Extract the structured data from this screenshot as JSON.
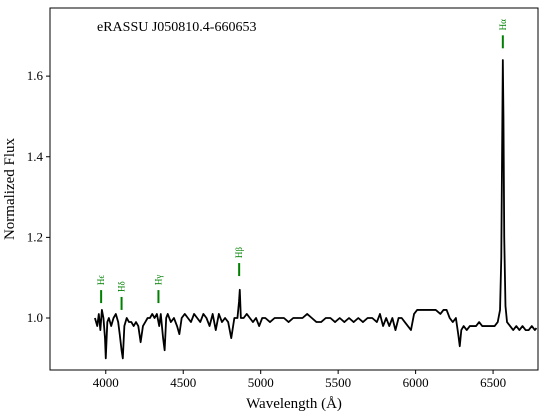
{
  "chart_data": {
    "type": "line",
    "title": "eRASSU J050810.4-660653",
    "x_label": "Wavelength (Å)",
    "y_label": "Normalized Flux",
    "xlim": [
      3640,
      6790
    ],
    "ylim": [
      0.871,
      1.769
    ],
    "xticks": [
      4000,
      4500,
      5000,
      5500,
      6000,
      6500
    ],
    "yticks": [
      {
        "value": 1,
        "label": "1.0"
      },
      1.2,
      1.4,
      1.6
    ],
    "color": "#000000",
    "line_color": "#008000",
    "lines": [
      {
        "label": "Hϵ",
        "x": 3970,
        "y": 1.037
      },
      {
        "label": "Hδ",
        "x": 4102,
        "y": 1.02
      },
      {
        "label": "Hγ",
        "x": 4340,
        "y": 1.037
      },
      {
        "label": "Hβ",
        "x": 4861,
        "y": 1.104
      },
      {
        "label": "Hα",
        "x": 6563,
        "y": 1.669
      }
    ],
    "x": [
      3930,
      3945,
      3955,
      3965,
      3975,
      3985,
      3995,
      4000,
      4010,
      4020,
      4035,
      4050,
      4065,
      4080,
      4090,
      4102,
      4110,
      4120,
      4135,
      4150,
      4165,
      4180,
      4195,
      4210,
      4225,
      4240,
      4255,
      4270,
      4285,
      4300,
      4315,
      4330,
      4345,
      4355,
      4370,
      4380,
      4390,
      4400,
      4420,
      4440,
      4460,
      4475,
      4490,
      4510,
      4530,
      4550,
      4570,
      4590,
      4610,
      4630,
      4650,
      4670,
      4690,
      4710,
      4730,
      4750,
      4770,
      4790,
      4810,
      4830,
      4850,
      4860,
      4865,
      4872,
      4890,
      4910,
      4930,
      4950,
      4970,
      4990,
      5010,
      5030,
      5060,
      5090,
      5120,
      5150,
      5180,
      5210,
      5240,
      5270,
      5300,
      5330,
      5360,
      5390,
      5420,
      5450,
      5480,
      5510,
      5540,
      5570,
      5600,
      5630,
      5660,
      5690,
      5720,
      5750,
      5770,
      5790,
      5810,
      5830,
      5850,
      5870,
      5890,
      5910,
      5930,
      5950,
      5970,
      5990,
      6010,
      6040,
      6070,
      6100,
      6130,
      6160,
      6180,
      6200,
      6220,
      6240,
      6260,
      6275,
      6285,
      6295,
      6310,
      6330,
      6350,
      6370,
      6390,
      6410,
      6430,
      6450,
      6470,
      6490,
      6510,
      6530,
      6545,
      6553,
      6558,
      6563,
      6567,
      6572,
      6580,
      6590,
      6610,
      6630,
      6650,
      6670,
      6690,
      6710,
      6730,
      6750,
      6770,
      6780
    ],
    "values": [
      1.0,
      0.98,
      1.01,
      0.97,
      1.02,
      1.0,
      0.95,
      0.9,
      0.99,
      1.0,
      0.98,
      1.0,
      1.01,
      0.99,
      0.96,
      0.92,
      0.9,
      0.98,
      1.0,
      0.99,
      0.99,
      0.98,
      0.99,
      0.98,
      0.94,
      0.98,
      0.99,
      1.0,
      1.0,
      1.01,
      1.0,
      1.01,
      0.98,
      1.01,
      0.95,
      0.92,
      1.0,
      1.01,
      0.99,
      1.0,
      0.98,
      0.96,
      1.0,
      1.01,
      1.0,
      0.99,
      1.01,
      1.0,
      0.99,
      1.01,
      1.0,
      0.98,
      1.01,
      0.97,
      1.01,
      0.99,
      1.0,
      0.99,
      0.95,
      1.0,
      1.0,
      1.04,
      1.07,
      1.0,
      1.0,
      1.01,
      1.0,
      0.99,
      1.0,
      0.98,
      1.0,
      1.0,
      0.99,
      1.0,
      1.0,
      1.0,
      0.99,
      1.0,
      1.0,
      1.0,
      1.01,
      1.0,
      0.99,
      0.99,
      1.0,
      1.0,
      0.99,
      1.0,
      0.99,
      1.0,
      0.99,
      1.0,
      0.99,
      1.0,
      1.0,
      0.99,
      1.01,
      0.98,
      1.0,
      0.98,
      1.0,
      0.97,
      1.0,
      1.0,
      0.99,
      0.98,
      0.97,
      1.01,
      1.02,
      1.02,
      1.02,
      1.02,
      1.02,
      1.01,
      1.02,
      1.02,
      1.0,
      0.99,
      1.0,
      0.96,
      0.93,
      0.97,
      0.98,
      0.97,
      0.98,
      0.98,
      0.98,
      0.99,
      0.98,
      0.98,
      0.98,
      0.98,
      0.98,
      0.99,
      1.02,
      1.15,
      1.4,
      1.64,
      1.5,
      1.2,
      1.03,
      0.99,
      0.98,
      0.97,
      0.98,
      0.97,
      0.98,
      0.97,
      0.97,
      0.98,
      0.97,
      0.975
    ]
  }
}
